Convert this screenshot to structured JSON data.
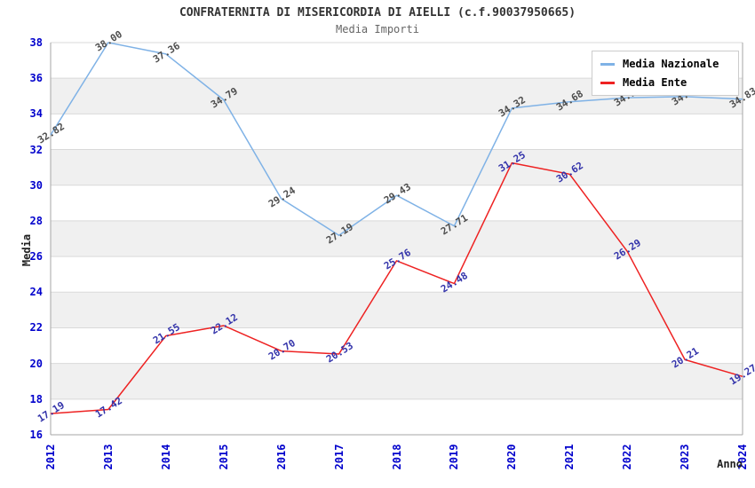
{
  "chart_data": {
    "type": "line",
    "title": "CONFRATERNITA DI MISERICORDIA DI AIELLI (c.f.90037950665)",
    "subtitle": "Media Importi",
    "xlabel": "Anno",
    "ylabel": "Media",
    "x": [
      "2012",
      "2013",
      "2014",
      "2015",
      "2016",
      "2017",
      "2018",
      "2019",
      "2020",
      "2021",
      "2022",
      "2023",
      "2024"
    ],
    "ylim": [
      16,
      38
    ],
    "y_ticks": [
      16,
      18,
      20,
      22,
      24,
      26,
      28,
      30,
      32,
      34,
      36,
      38
    ],
    "grid": true,
    "banded_background": true,
    "legend_position": "top-right",
    "series": [
      {
        "name": "Media Nazionale",
        "color": "#7fb2e6",
        "label_color": "#4d4d4d",
        "values": [
          32.82,
          38.0,
          37.36,
          34.79,
          29.24,
          27.19,
          29.43,
          27.71,
          34.32,
          34.68,
          34.91,
          34.97,
          34.83
        ],
        "labels": [
          "32.82",
          "38.00",
          "37.36",
          "34.79",
          "29.24",
          "27.19",
          "29.43",
          "27.71",
          "34.32",
          "34.68",
          "34.91",
          "34.97",
          "34.83"
        ]
      },
      {
        "name": "Media Ente",
        "color": "#ee2222",
        "label_color": "#3333aa",
        "values": [
          17.19,
          17.42,
          21.55,
          22.12,
          20.7,
          20.53,
          25.76,
          24.48,
          31.25,
          30.62,
          26.29,
          20.21,
          19.27
        ],
        "labels": [
          "17.19",
          "17.42",
          "21.55",
          "22.12",
          "20.70",
          "20.53",
          "25.76",
          "24.48",
          "31.25",
          "30.62",
          "26.29",
          "20.21",
          "19.27"
        ]
      }
    ]
  },
  "colors": {
    "band_gray": "#f0f0f0",
    "band_white": "#ffffff",
    "gridline": "#d9d9d9",
    "spine": "#a6a6a6",
    "tick_label": "#0000cc",
    "title": "#333333",
    "subtitle": "#666666"
  },
  "legend": {
    "items": [
      {
        "label": "Media Nazionale"
      },
      {
        "label": "Media Ente"
      }
    ]
  }
}
